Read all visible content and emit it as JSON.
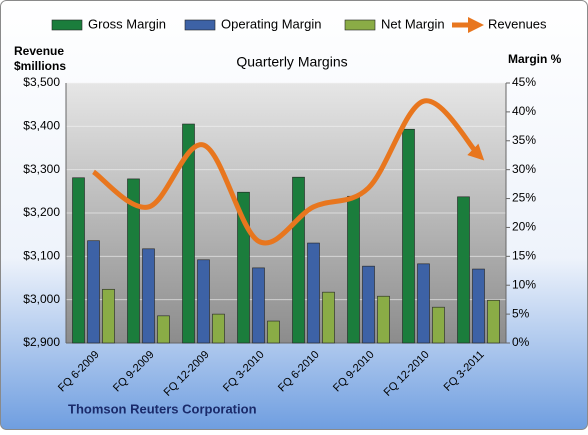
{
  "chart_data": {
    "type": "bar",
    "title": "Quarterly Margins",
    "y_label": [
      "Revenue",
      "$millions"
    ],
    "y2_label": "Margin %",
    "footer": "Thomson Reuters Corporation",
    "categories": [
      "FQ 6-2009",
      "FQ 9-2009",
      "FQ 12-2009",
      "FQ 3-2010",
      "FQ 6-2010",
      "FQ 9-2010",
      "FQ 12-2010",
      "FQ 3-2011"
    ],
    "series": [
      {
        "name": "Gross Margin",
        "type": "bar",
        "axis": "y2",
        "color": "#1b7d3c",
        "values": [
          28.6,
          28.4,
          37.9,
          26.1,
          28.7,
          25.4,
          37.0,
          25.3
        ]
      },
      {
        "name": "Operating Margin",
        "type": "bar",
        "axis": "y2",
        "color": "#3d62a6",
        "values": [
          17.7,
          16.3,
          14.4,
          13.0,
          17.3,
          13.3,
          13.7,
          12.8
        ]
      },
      {
        "name": "Net Margin",
        "type": "bar",
        "axis": "y2",
        "color": "#8aac46",
        "values": [
          9.3,
          4.7,
          5.0,
          3.8,
          8.8,
          8.1,
          6.2,
          7.4
        ]
      },
      {
        "name": "Revenues",
        "type": "line",
        "axis": "y",
        "color": "#e8761e",
        "values": [
          3295,
          3214,
          3357,
          3135,
          3214,
          3258,
          3458,
          3334
        ]
      }
    ],
    "ylim": [
      2900,
      3500
    ],
    "yticks": [
      {
        "value": 2900,
        "label": "$2,900"
      },
      {
        "value": 3000,
        "label": "$3,000"
      },
      {
        "value": 3100,
        "label": "$3,100"
      },
      {
        "value": 3200,
        "label": "$3,200"
      },
      {
        "value": 3300,
        "label": "$3,300"
      },
      {
        "value": 3400,
        "label": "$3,400"
      },
      {
        "value": 3500,
        "label": "$3,500"
      }
    ],
    "y2lim": [
      0,
      45
    ],
    "y2ticks": [
      {
        "value": 0,
        "label": "0%"
      },
      {
        "value": 5,
        "label": "5%"
      },
      {
        "value": 10,
        "label": "10%"
      },
      {
        "value": 15,
        "label": "15%"
      },
      {
        "value": 20,
        "label": "20%"
      },
      {
        "value": 25,
        "label": "25%"
      },
      {
        "value": 30,
        "label": "30%"
      },
      {
        "value": 35,
        "label": "35%"
      },
      {
        "value": 40,
        "label": "40%"
      },
      {
        "value": 45,
        "label": "45%"
      }
    ],
    "grid": true
  }
}
